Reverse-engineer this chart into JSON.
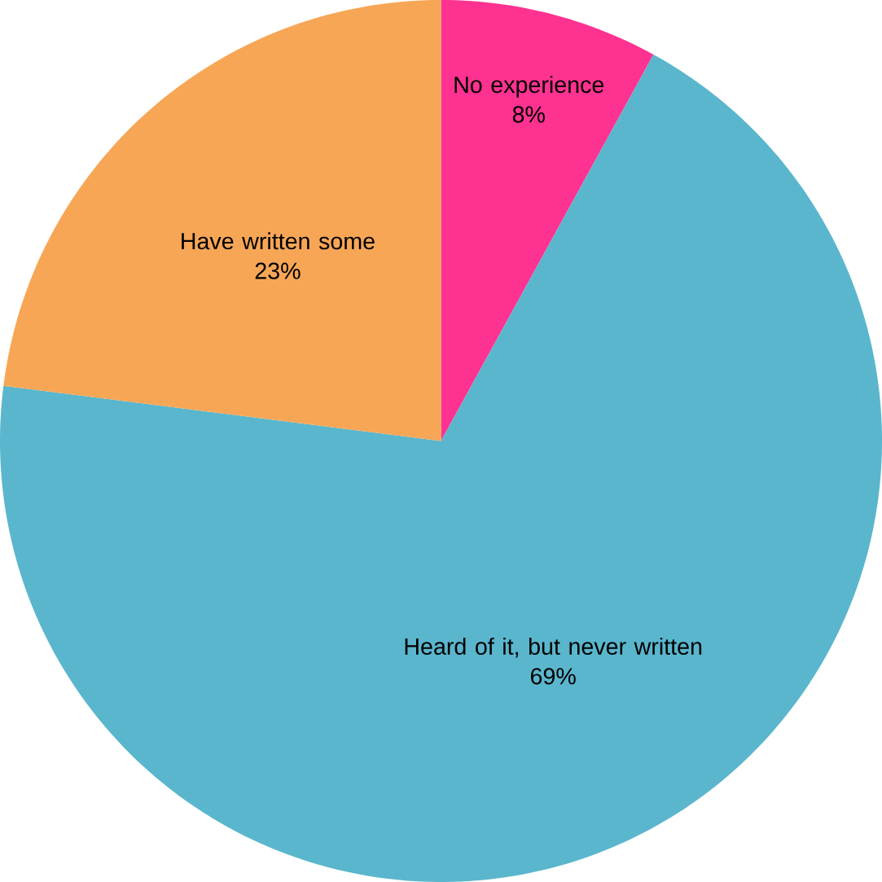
{
  "chart_data": {
    "type": "pie",
    "categories": [
      "No experience",
      "Heard of it, but never written",
      "Have written some"
    ],
    "values": [
      8,
      69,
      23
    ],
    "colors": [
      "#fe3290",
      "#5ab6cd",
      "#f7a656"
    ],
    "value_labels": [
      "8%",
      "69%",
      "23%"
    ]
  }
}
